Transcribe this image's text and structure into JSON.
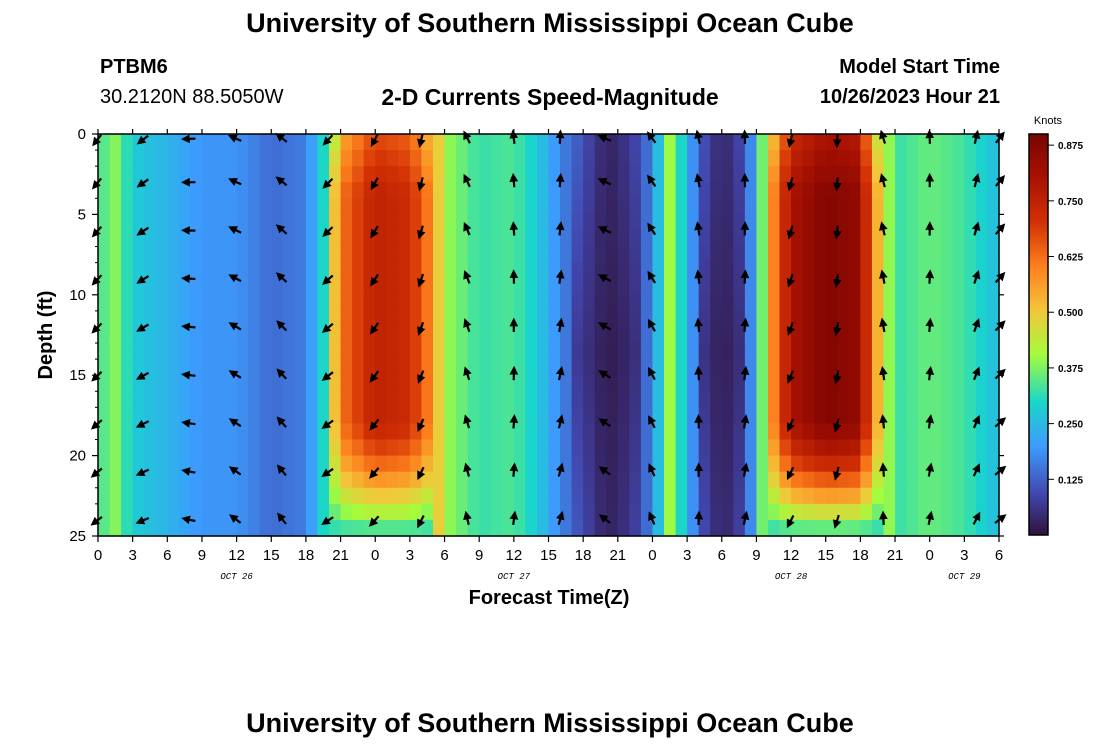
{
  "header": {
    "title": "University of Southern Mississippi Ocean Cube",
    "station": "PTBM6",
    "coords": "30.2120N  88.5050W",
    "subtitle": "2-D Currents Speed-Magnitude",
    "start_label": "Model Start Time",
    "start_value": "10/26/2023 Hour 21"
  },
  "footer": {
    "title": "University of Southern Mississippi Ocean Cube"
  },
  "chart_data": {
    "type": "heatmap",
    "title": "2-D Currents Speed-Magnitude",
    "xlabel": "Forecast Time(Z)",
    "ylabel": "Depth (ft)",
    "x_range_hours": [
      0,
      78
    ],
    "x_tick_hours": [
      0,
      3,
      6,
      9,
      12,
      15,
      18,
      21,
      24,
      27,
      30,
      33,
      36,
      39,
      42,
      45,
      48,
      51,
      54,
      57,
      60,
      63,
      66,
      69,
      72,
      75,
      78
    ],
    "x_tick_labels": [
      "0",
      "3",
      "6",
      "9",
      "12",
      "15",
      "18",
      "21",
      "0",
      "3",
      "6",
      "9",
      "12",
      "15",
      "18",
      "21",
      "0",
      "3",
      "6",
      "9",
      "12",
      "15",
      "18",
      "21",
      "0",
      "3",
      "6"
    ],
    "date_labels": [
      {
        "label": "OCT 26",
        "hour": 12
      },
      {
        "label": "OCT 27",
        "hour": 36
      },
      {
        "label": "OCT 28",
        "hour": 60
      },
      {
        "label": "OCT 29",
        "hour": 75
      }
    ],
    "y_range_ft": [
      0,
      25
    ],
    "y_ticks": [
      0,
      5,
      10,
      15,
      20,
      25
    ],
    "colorbar": {
      "units": "Knots",
      "min": 0,
      "max": 0.9,
      "ticks": [
        "0.125",
        "0.250",
        "0.375",
        "0.500",
        "0.625",
        "0.750",
        "0.875"
      ],
      "tick_values": [
        0.125,
        0.25,
        0.375,
        0.5,
        0.625,
        0.75,
        0.875
      ]
    },
    "time_profile_knots": [
      [
        0,
        0.33
      ],
      [
        1.5,
        0.38
      ],
      [
        3,
        0.28
      ],
      [
        6,
        0.24
      ],
      [
        9,
        0.19
      ],
      [
        12,
        0.19
      ],
      [
        15,
        0.14
      ],
      [
        18,
        0.16
      ],
      [
        19.5,
        0.3
      ],
      [
        21,
        0.62
      ],
      [
        24,
        0.75
      ],
      [
        27,
        0.72
      ],
      [
        29,
        0.58
      ],
      [
        30,
        0.4
      ],
      [
        33,
        0.32
      ],
      [
        36,
        0.34
      ],
      [
        38,
        0.28
      ],
      [
        40,
        0.17
      ],
      [
        42,
        0.1
      ],
      [
        44,
        0.03
      ],
      [
        45,
        0.04
      ],
      [
        47,
        0.1
      ],
      [
        48,
        0.18
      ],
      [
        49.5,
        0.4
      ],
      [
        51,
        0.25
      ],
      [
        52,
        0.12
      ],
      [
        54,
        0.03
      ],
      [
        56,
        0.1
      ],
      [
        57,
        0.25
      ],
      [
        58.5,
        0.6
      ],
      [
        60,
        0.8
      ],
      [
        63,
        0.88
      ],
      [
        66,
        0.85
      ],
      [
        67,
        0.6
      ],
      [
        69,
        0.32
      ],
      [
        72,
        0.36
      ],
      [
        75,
        0.33
      ],
      [
        78,
        0.25
      ]
    ],
    "arrow_depths_ft": [
      0.3,
      3,
      6,
      9,
      12,
      15,
      18,
      21,
      24
    ],
    "arrow_hours": [
      0,
      4,
      8,
      12,
      16,
      20,
      24,
      28,
      32,
      36,
      40,
      44,
      48,
      52,
      56,
      60,
      64,
      68,
      72,
      76,
      78
    ],
    "arrow_direction_deg_profile": [
      [
        0,
        225
      ],
      [
        4,
        240
      ],
      [
        8,
        275
      ],
      [
        12,
        300
      ],
      [
        16,
        315
      ],
      [
        20,
        230
      ],
      [
        24,
        215
      ],
      [
        28,
        200
      ],
      [
        32,
        340
      ],
      [
        36,
        0
      ],
      [
        40,
        10
      ],
      [
        44,
        300
      ],
      [
        48,
        330
      ],
      [
        52,
        355
      ],
      [
        56,
        5
      ],
      [
        60,
        200
      ],
      [
        64,
        190
      ],
      [
        68,
        350
      ],
      [
        72,
        5
      ],
      [
        76,
        20
      ],
      [
        78,
        45
      ]
    ]
  }
}
